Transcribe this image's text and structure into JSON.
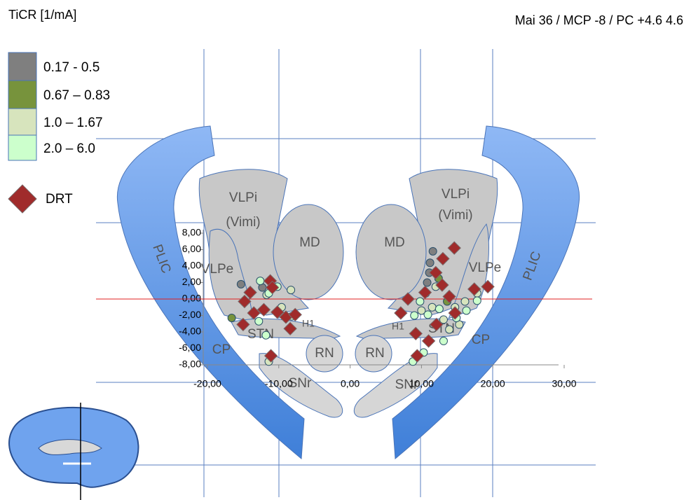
{
  "chart_data": {
    "type": "scatter",
    "title": "TiCR [1/mA]",
    "subtitle": "Mai 36 / MCP -8 / PC +4.6   4.6",
    "xlim": [
      -20,
      30
    ],
    "ylim": [
      -8,
      8
    ],
    "xticks": [
      {
        "value": -20,
        "label": "-20,00"
      },
      {
        "value": -10,
        "label": "-10,00"
      },
      {
        "value": 0,
        "label": "0,00"
      },
      {
        "value": 10,
        "label": "10,00"
      },
      {
        "value": 20,
        "label": "20,00"
      },
      {
        "value": 30,
        "label": "30,00"
      }
    ],
    "yticks": [
      {
        "value": 8,
        "label": "8,00"
      },
      {
        "value": 6,
        "label": "6,00"
      },
      {
        "value": 4,
        "label": "4,00"
      },
      {
        "value": 2,
        "label": "2,00"
      },
      {
        "value": 0,
        "label": "0,00"
      },
      {
        "value": -2,
        "label": "-2,00"
      },
      {
        "value": -4,
        "label": "-4,00"
      },
      {
        "value": -6,
        "label": "-6,00"
      },
      {
        "value": -8,
        "label": "-8,00"
      }
    ],
    "annotations": [
      "VLPi",
      "(Vimi)",
      "MD",
      "VLPe",
      "PLIC",
      "STN",
      "H1",
      "RN",
      "CP",
      "SNr",
      "VLPi",
      "(Vimi)",
      "MD",
      "VLPe",
      "PLIC",
      "STN",
      "H1",
      "RN",
      "CP",
      "SNr"
    ],
    "series": [
      {
        "name": "0.17 - 0.5",
        "color": "#7f7f7f",
        "marker": "circle",
        "x": [
          -15.3,
          11.6,
          11.2,
          11.1,
          -12.3,
          10.8
        ],
        "y": [
          1.8,
          5.8,
          4.4,
          3.2,
          1.4,
          2.0
        ]
      },
      {
        "name": "0.67 – 0.83",
        "color": "#77933c",
        "marker": "circle",
        "x": [
          -16.6,
          12.4,
          13.6
        ],
        "y": [
          -2.3,
          2.5,
          -0.3
        ]
      },
      {
        "name": "1.0 – 1.67",
        "color": "#d7e4bd",
        "marker": "circle",
        "x": [
          -8.3,
          -9.6,
          -8.2,
          -11.7,
          10.6,
          11.5,
          13.1,
          14.7,
          16.1,
          17.8,
          13.9,
          10.0,
          12.0,
          15.3,
          -11.4
        ],
        "y": [
          1.1,
          -1.0,
          -2.1,
          0.5,
          0.7,
          -1.0,
          -2.5,
          -1.0,
          -0.3,
          0.7,
          -3.7,
          -1.4,
          1.5,
          -3.1,
          -7.6
        ]
      },
      {
        "name": "2.0 – 6.0",
        "color": "#ccffcc",
        "marker": "circle",
        "x": [
          -12.6,
          -11.4,
          -10.2,
          -12.8,
          -11.8,
          9.8,
          10.9,
          12.5,
          14.9,
          16.3,
          13.1,
          10.3,
          8.8,
          9.0,
          17.8
        ],
        "y": [
          2.2,
          0.7,
          1.5,
          -2.7,
          -4.4,
          -0.3,
          -1.9,
          -1.2,
          -2.3,
          -1.4,
          -5.1,
          -6.5,
          -7.6,
          -2.0,
          -0.2
        ]
      },
      {
        "name": "DRT",
        "color": "#a02b2b",
        "marker": "diamond",
        "x": [
          -14.0,
          -14.8,
          -15.0,
          -11.2,
          -10.9,
          -12.1,
          -10.2,
          -9.0,
          -8.4,
          -7.7,
          -11.1,
          -13.5,
          14.6,
          13.0,
          12.0,
          12.9,
          10.5,
          8.1,
          7.1,
          9.2,
          11.0,
          12.1,
          14.7,
          17.4,
          19.3,
          9.4,
          13.9
        ],
        "y": [
          0.8,
          -0.3,
          -3.1,
          2.2,
          1.4,
          -1.3,
          -1.6,
          -2.2,
          -3.6,
          -1.9,
          -6.9,
          -1.7,
          6.2,
          4.9,
          3.2,
          1.7,
          0.8,
          0.0,
          -1.7,
          -4.2,
          -5.1,
          -3.1,
          -1.7,
          1.2,
          1.5,
          -6.9,
          0.3
        ]
      }
    ]
  }
}
